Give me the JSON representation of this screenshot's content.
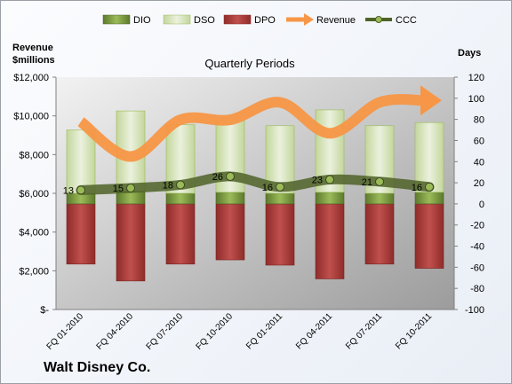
{
  "chart_data": {
    "type": "bar",
    "title": "Quarterly Periods",
    "company": "Walt Disney Co.",
    "y_left_label_line1": "Revenue",
    "y_left_label_line2": "$millions",
    "y_right_label": "Days",
    "y_left_range": [
      0,
      12000
    ],
    "y_right_range": [
      -100,
      120
    ],
    "y_left_ticks": [
      "$-",
      "$2,000",
      "$4,000",
      "$6,000",
      "$8,000",
      "$10,000",
      "$12,000"
    ],
    "y_right_ticks": [
      "-100",
      "-80",
      "-60",
      "-40",
      "-20",
      "0",
      "20",
      "40",
      "60",
      "80",
      "100",
      "120"
    ],
    "categories": [
      "FQ 01-2010",
      "FQ 04-2010",
      "FQ 07-2010",
      "FQ 10-2010",
      "FQ 01-2011",
      "FQ 04-2011",
      "FQ 07-2011",
      "FQ 10-2011"
    ],
    "legend": [
      "DIO",
      "DSO",
      "DPO",
      "Revenue",
      "CCC"
    ],
    "legend_position": "top",
    "colors": {
      "DIO": "#76923c",
      "DSO": "#d7e4bd",
      "DPO": "#c0504d",
      "Revenue": "#f79646",
      "CCC": "#4f6228"
    },
    "series": [
      {
        "name": "DPO",
        "axis": "right",
        "values": [
          -57,
          -73,
          -57,
          -53,
          -58,
          -71,
          -57,
          -61
        ]
      },
      {
        "name": "DIO",
        "axis": "right",
        "values": [
          10,
          12,
          10,
          11,
          10,
          11,
          10,
          11
        ]
      },
      {
        "name": "DSO",
        "axis": "right",
        "values": [
          60,
          76,
          65,
          68,
          64,
          78,
          64,
          66
        ]
      },
      {
        "name": "CCC",
        "axis": "right",
        "values": [
          13,
          15,
          18,
          26,
          16,
          23,
          21,
          16
        ]
      },
      {
        "name": "Revenue",
        "axis": "left",
        "values": [
          9700,
          7900,
          9800,
          9800,
          10700,
          9100,
          10700,
          10800
        ]
      }
    ],
    "ccc_labels": [
      "13",
      "15",
      "18",
      "26",
      "16",
      "23",
      "21",
      "16"
    ],
    "grid": false
  }
}
